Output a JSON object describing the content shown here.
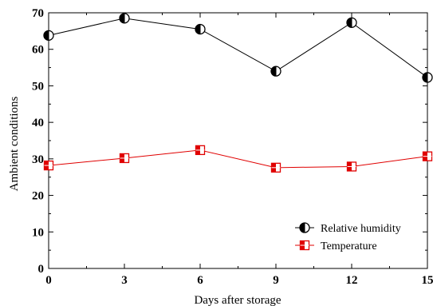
{
  "chart_data": {
    "type": "line",
    "xlabel": "Days after storage",
    "ylabel": "Ambient conditions",
    "xlim": [
      0,
      15
    ],
    "ylim": [
      0,
      70
    ],
    "x_ticks": [
      0,
      3,
      6,
      9,
      12,
      15
    ],
    "y_ticks": [
      0,
      10,
      20,
      30,
      40,
      50,
      60,
      70
    ],
    "x_tick_labels": [
      "0",
      "3",
      "6",
      "9",
      "12",
      "15"
    ],
    "y_tick_labels": [
      "0",
      "10",
      "20",
      "30",
      "40",
      "50",
      "60",
      "70"
    ],
    "grid": false,
    "legend_position": "bottom-right",
    "series": [
      {
        "name": "Relative humidity",
        "color": "#000000",
        "marker": "half-filled-circle",
        "x": [
          0,
          3,
          6,
          9,
          12,
          15
        ],
        "values": [
          63.8,
          68.5,
          65.5,
          54.0,
          67.3,
          52.3
        ]
      },
      {
        "name": "Temperature",
        "color": "#e00000",
        "marker": "half-filled-square",
        "x": [
          0,
          3,
          6,
          9,
          12,
          15
        ],
        "values": [
          28.2,
          30.2,
          32.4,
          27.6,
          27.9,
          30.7
        ]
      }
    ]
  }
}
